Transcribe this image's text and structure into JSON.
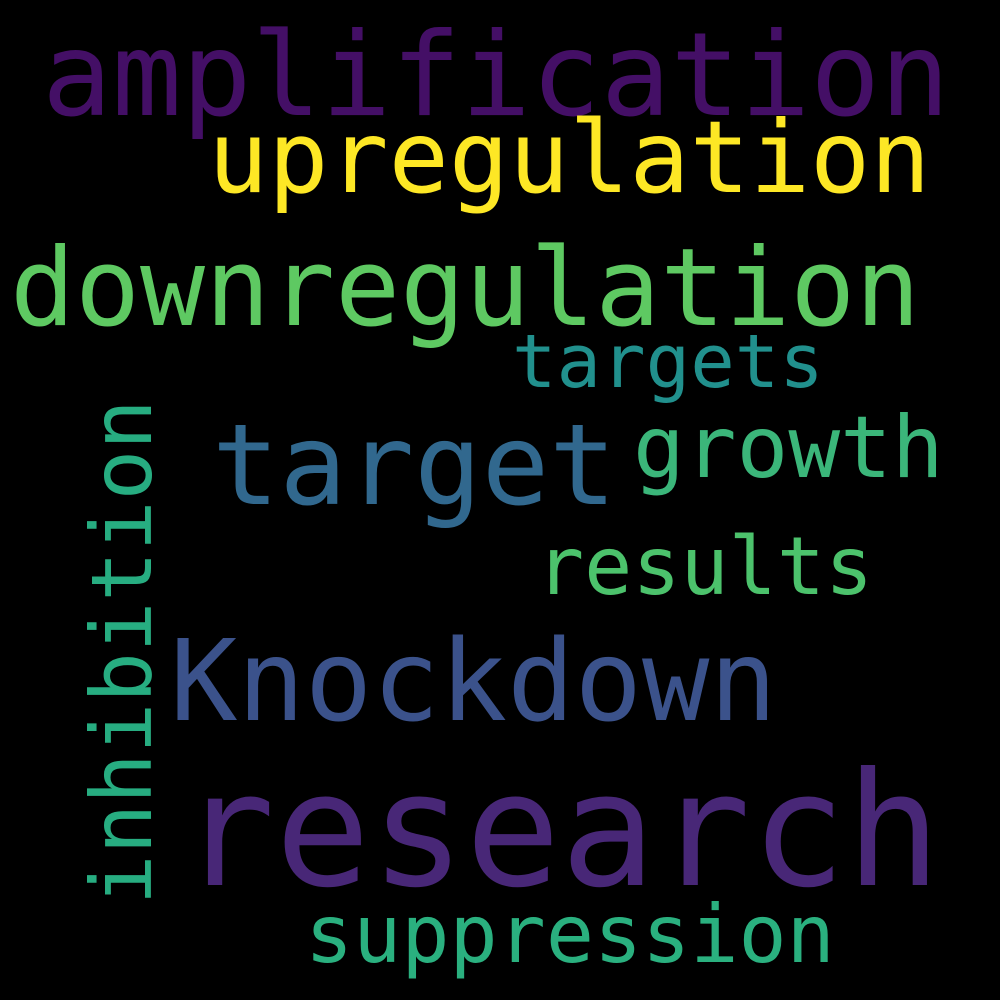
{
  "words": {
    "amplification": "amplification",
    "upregulation": "upregulation",
    "downregulation": "downregulation",
    "targets": "targets",
    "target": "target",
    "growth": "growth",
    "results": "results",
    "inhibition": "inhibition",
    "knockdown": "Knockdown",
    "research": "research",
    "suppression": "suppression"
  },
  "colors": {
    "background": "#000000",
    "amplification": "#440f66",
    "upregulation": "#fde725",
    "downregulation": "#5ec962",
    "targets": "#21908d",
    "target": "#31688e",
    "growth": "#3bb67a",
    "results": "#4cc26c",
    "inhibition": "#27ad81",
    "knockdown": "#3b528b",
    "research": "#482777",
    "suppression": "#2ab07f"
  }
}
